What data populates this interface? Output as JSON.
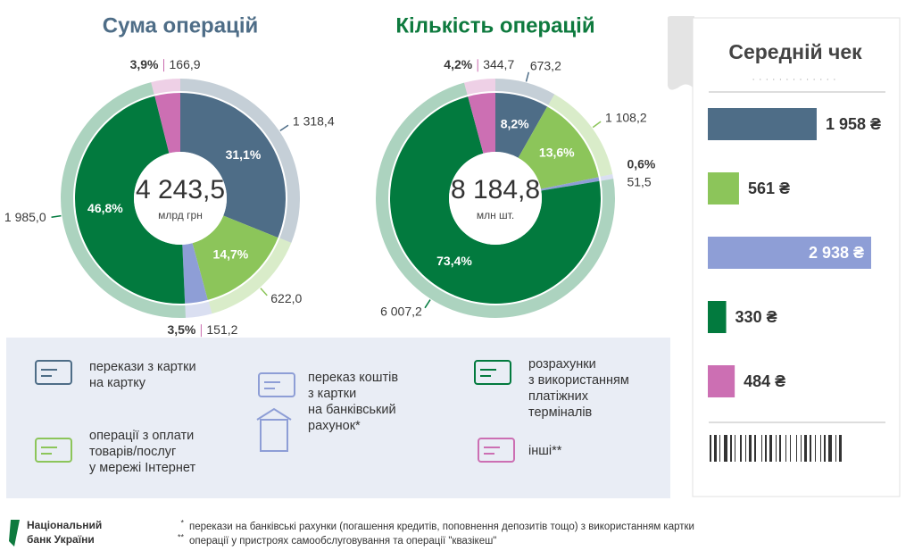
{
  "chart_data": [
    {
      "type": "donut",
      "title": "Сума операцій",
      "title_color": "#4e6d87",
      "total": "4 243,5",
      "unit": "млрд грн",
      "colors": [
        "#4e6d87",
        "#8cc55a",
        "#8e9ed6",
        "#027a3e",
        "#cc6fb3"
      ],
      "series": [
        {
          "values": [
            1318.4,
            622.0,
            151.2,
            1985.0,
            166.9
          ],
          "value_labels": [
            "1 318,4",
            "622,0",
            "151,2",
            "1 985,0",
            "166,9"
          ]
        },
        {
          "values": [
            31.1,
            14.7,
            3.5,
            46.8,
            3.9
          ],
          "value_labels": [
            "31,1%",
            "14,7%",
            "3,5%",
            "46,8%",
            "3,9%"
          ]
        }
      ]
    },
    {
      "type": "donut",
      "title": "Кількість операцій",
      "title_color": "#0e7a3e",
      "total": "8 184,8",
      "unit": "млн шт.",
      "colors": [
        "#4e6d87",
        "#8cc55a",
        "#8e9ed6",
        "#027a3e",
        "#cc6fb3"
      ],
      "series": [
        {
          "values": [
            673.2,
            1108.2,
            51.5,
            6007.2,
            344.7
          ],
          "value_labels": [
            "673,2",
            "1 108,2",
            "51,5",
            "6 007,2",
            "344,7"
          ]
        },
        {
          "values": [
            8.2,
            13.6,
            0.6,
            73.4,
            4.2
          ],
          "value_labels": [
            "8,2%",
            "13,6%",
            "0,6%",
            "73,4%",
            "4,2%"
          ]
        }
      ]
    },
    {
      "type": "bar",
      "orientation": "horizontal",
      "title": "Середній чек",
      "colors": [
        "#4e6d87",
        "#8cc55a",
        "#8e9ed6",
        "#027a3e",
        "#cc6fb3"
      ],
      "values": [
        1958,
        561,
        2938,
        330,
        484
      ],
      "value_labels": [
        "1 958 ₴",
        "561 ₴",
        "2 938 ₴",
        "330 ₴",
        "484 ₴"
      ]
    }
  ],
  "legend": [
    {
      "lines": [
        "перекази з картки",
        "на картку"
      ],
      "color": "#4e6d87"
    },
    {
      "lines": [
        "операції з оплати",
        "товарів/послуг",
        "у мережі Інтернет"
      ],
      "color": "#8cc55a"
    },
    {
      "lines": [
        "переказ коштів",
        "з картки",
        "на банківський",
        "рахунок*"
      ],
      "color": "#8e9ed6"
    },
    {
      "lines": [
        "розрахунки",
        "з використанням",
        "платіжних",
        "терміналів"
      ],
      "color": "#027a3e"
    },
    {
      "lines": [
        "інші**"
      ],
      "color": "#cc6fb3"
    }
  ],
  "logo": [
    "Національний",
    "банк України"
  ],
  "footnotes": [
    {
      "marker": "*",
      "text": "перекази на банківські рахунки (погашення кредитів, поповнення депозитів тощо) з використанням картки"
    },
    {
      "marker": "**",
      "text": "операції у пристроях самообслуговування та операції \"квазікеш\""
    }
  ]
}
